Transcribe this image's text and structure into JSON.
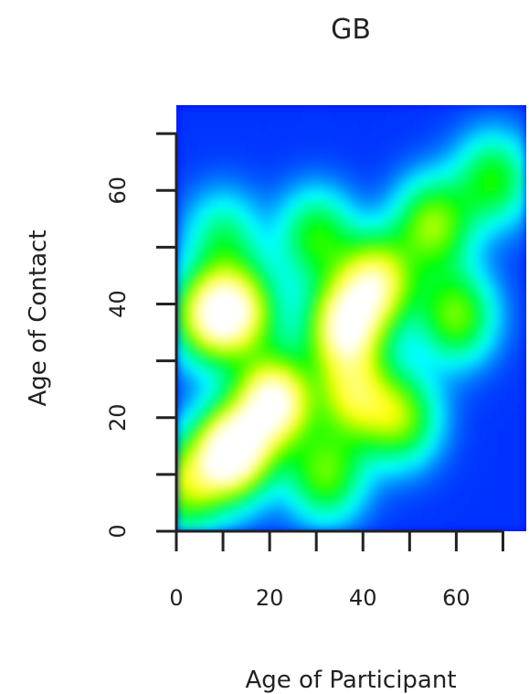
{
  "chart_data": {
    "type": "heatmap",
    "title": "GB",
    "xlabel": "Age of Participant",
    "ylabel": "Age of Contact",
    "xlim": [
      0,
      75
    ],
    "ylim": [
      0,
      75
    ],
    "x_ticks": [
      0,
      10,
      20,
      30,
      40,
      50,
      60,
      70
    ],
    "y_ticks": [
      0,
      10,
      20,
      30,
      40,
      50,
      60,
      70
    ],
    "x_tick_labels": [
      "0",
      "20",
      "40",
      "60"
    ],
    "y_tick_labels": [
      "0",
      "20",
      "40",
      "60"
    ],
    "color_scale": [
      "#0000ff",
      "#00ffff",
      "#00ff00",
      "#ffff00",
      "#ffffff"
    ],
    "peaks": [
      {
        "x": 12,
        "y": 14,
        "intensity": 1.05
      },
      {
        "x": 21,
        "y": 23,
        "intensity": 0.95
      },
      {
        "x": 36,
        "y": 36,
        "intensity": 0.85
      },
      {
        "x": 43,
        "y": 44,
        "intensity": 0.75
      },
      {
        "x": 7,
        "y": 38,
        "intensity": 0.72
      },
      {
        "x": 14,
        "y": 39,
        "intensity": 0.62
      },
      {
        "x": 38,
        "y": 24,
        "intensity": 0.6
      },
      {
        "x": 48,
        "y": 20,
        "intensity": 0.55
      },
      {
        "x": 32,
        "y": 10,
        "intensity": 0.52
      },
      {
        "x": 60,
        "y": 38,
        "intensity": 0.55
      },
      {
        "x": 55,
        "y": 54,
        "intensity": 0.58
      },
      {
        "x": 68,
        "y": 62,
        "intensity": 0.45
      },
      {
        "x": 30,
        "y": 52,
        "intensity": 0.45
      },
      {
        "x": 10,
        "y": 52,
        "intensity": 0.32
      },
      {
        "x": 2,
        "y": 8,
        "intensity": 0.55
      }
    ],
    "grid": false,
    "legend": "none"
  }
}
